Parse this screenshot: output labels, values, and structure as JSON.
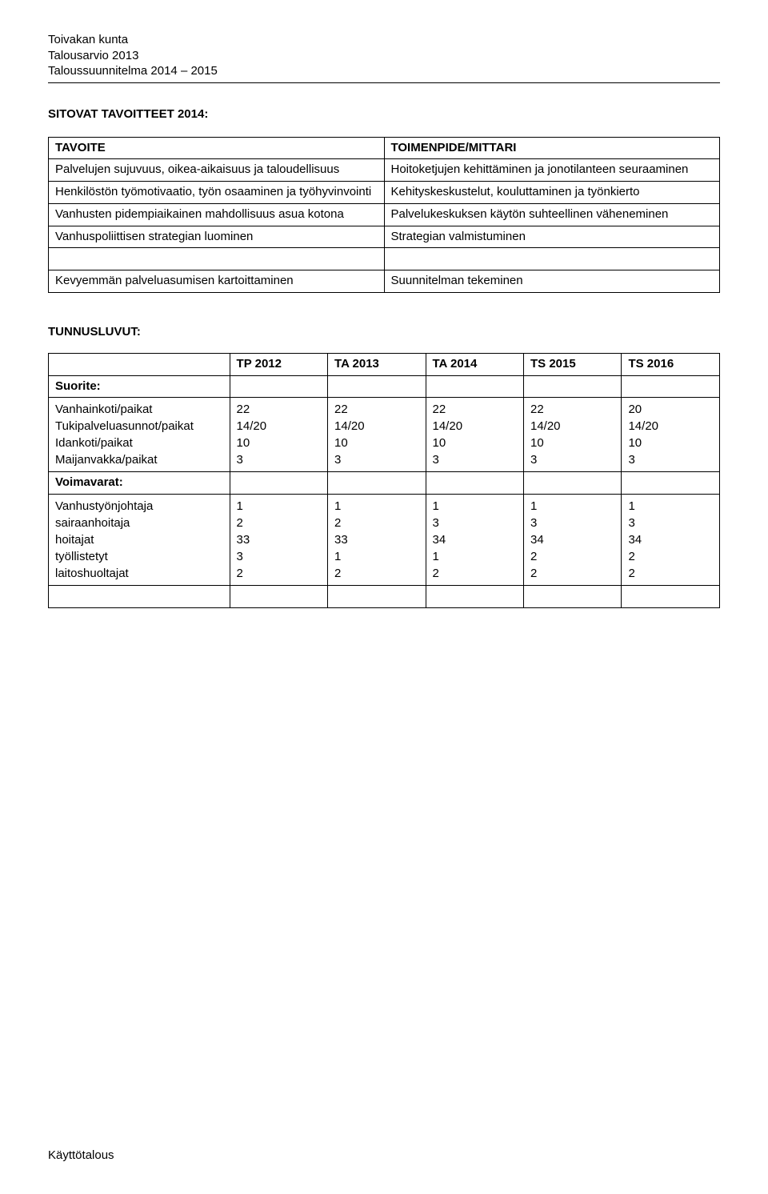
{
  "header": {
    "line1": "Toivakan kunta",
    "line2": "Talousarvio 2013",
    "line3": "Taloussuunnitelma 2014 – 2015"
  },
  "section_title": "SITOVAT TAVOITTEET 2014:",
  "tavoite_table": {
    "col_left": "TAVOITE",
    "col_right": "TOIMENPIDE/MITTARI",
    "rows": [
      {
        "left": "Palvelujen sujuvuus, oikea-aikaisuus ja taloudellisuus",
        "right": "Hoitoketjujen kehittäminen ja jonotilanteen seuraaminen"
      },
      {
        "left": "Henkilöstön työmotivaatio, työn osaaminen ja työhyvinvointi",
        "right": "Kehityskeskustelut, kouluttaminen ja työnkierto"
      },
      {
        "left": "Vanhusten pidempiaikainen mahdollisuus asua kotona",
        "right": "Palvelukeskuksen käytön suhteellinen väheneminen"
      },
      {
        "left": "Vanhuspoliittisen strategian luominen",
        "right": "Strategian valmistuminen"
      }
    ],
    "gap_row": {
      "left": "Kevyemmän palveluasumisen kartoittaminen",
      "right": "Suunnitelman tekeminen"
    }
  },
  "tunnus_title": "TUNNUSLUVUT:",
  "data_table": {
    "headers": [
      "TP 2012",
      "TA 2013",
      "TA 2014",
      "TS 2015",
      "TS 2016"
    ],
    "suorite_label": "Suorite:",
    "suorite_rows_labels": [
      "Vanhainkoti/paikat",
      "Tukipalveluasunnot/paikat",
      "Idankoti/paikat",
      "Maijanvakka/paikat"
    ],
    "suorite_values": [
      [
        "22",
        "22",
        "22",
        "22",
        "20"
      ],
      [
        "14/20",
        "14/20",
        "14/20",
        "14/20",
        "14/20"
      ],
      [
        "10",
        "10",
        "10",
        "10",
        "10"
      ],
      [
        " 3",
        " 3",
        " 3",
        " 3",
        " 3"
      ]
    ],
    "voimavarat_label": "Voimavarat:",
    "voimavarat_rows_labels": [
      "Vanhustyönjohtaja",
      "sairaanhoitaja",
      "hoitajat",
      "työllistetyt",
      "laitoshuoltajat"
    ],
    "voimavarat_values": [
      [
        "1",
        "1",
        "1",
        "1",
        "1"
      ],
      [
        "2",
        "2",
        "3",
        "3",
        "3"
      ],
      [
        "33",
        "33",
        "34",
        "34",
        "34"
      ],
      [
        "3",
        "1",
        "1",
        "2",
        "2"
      ],
      [
        "2",
        "2",
        "2",
        "2",
        "2"
      ]
    ]
  },
  "footer": "Käyttötalous"
}
